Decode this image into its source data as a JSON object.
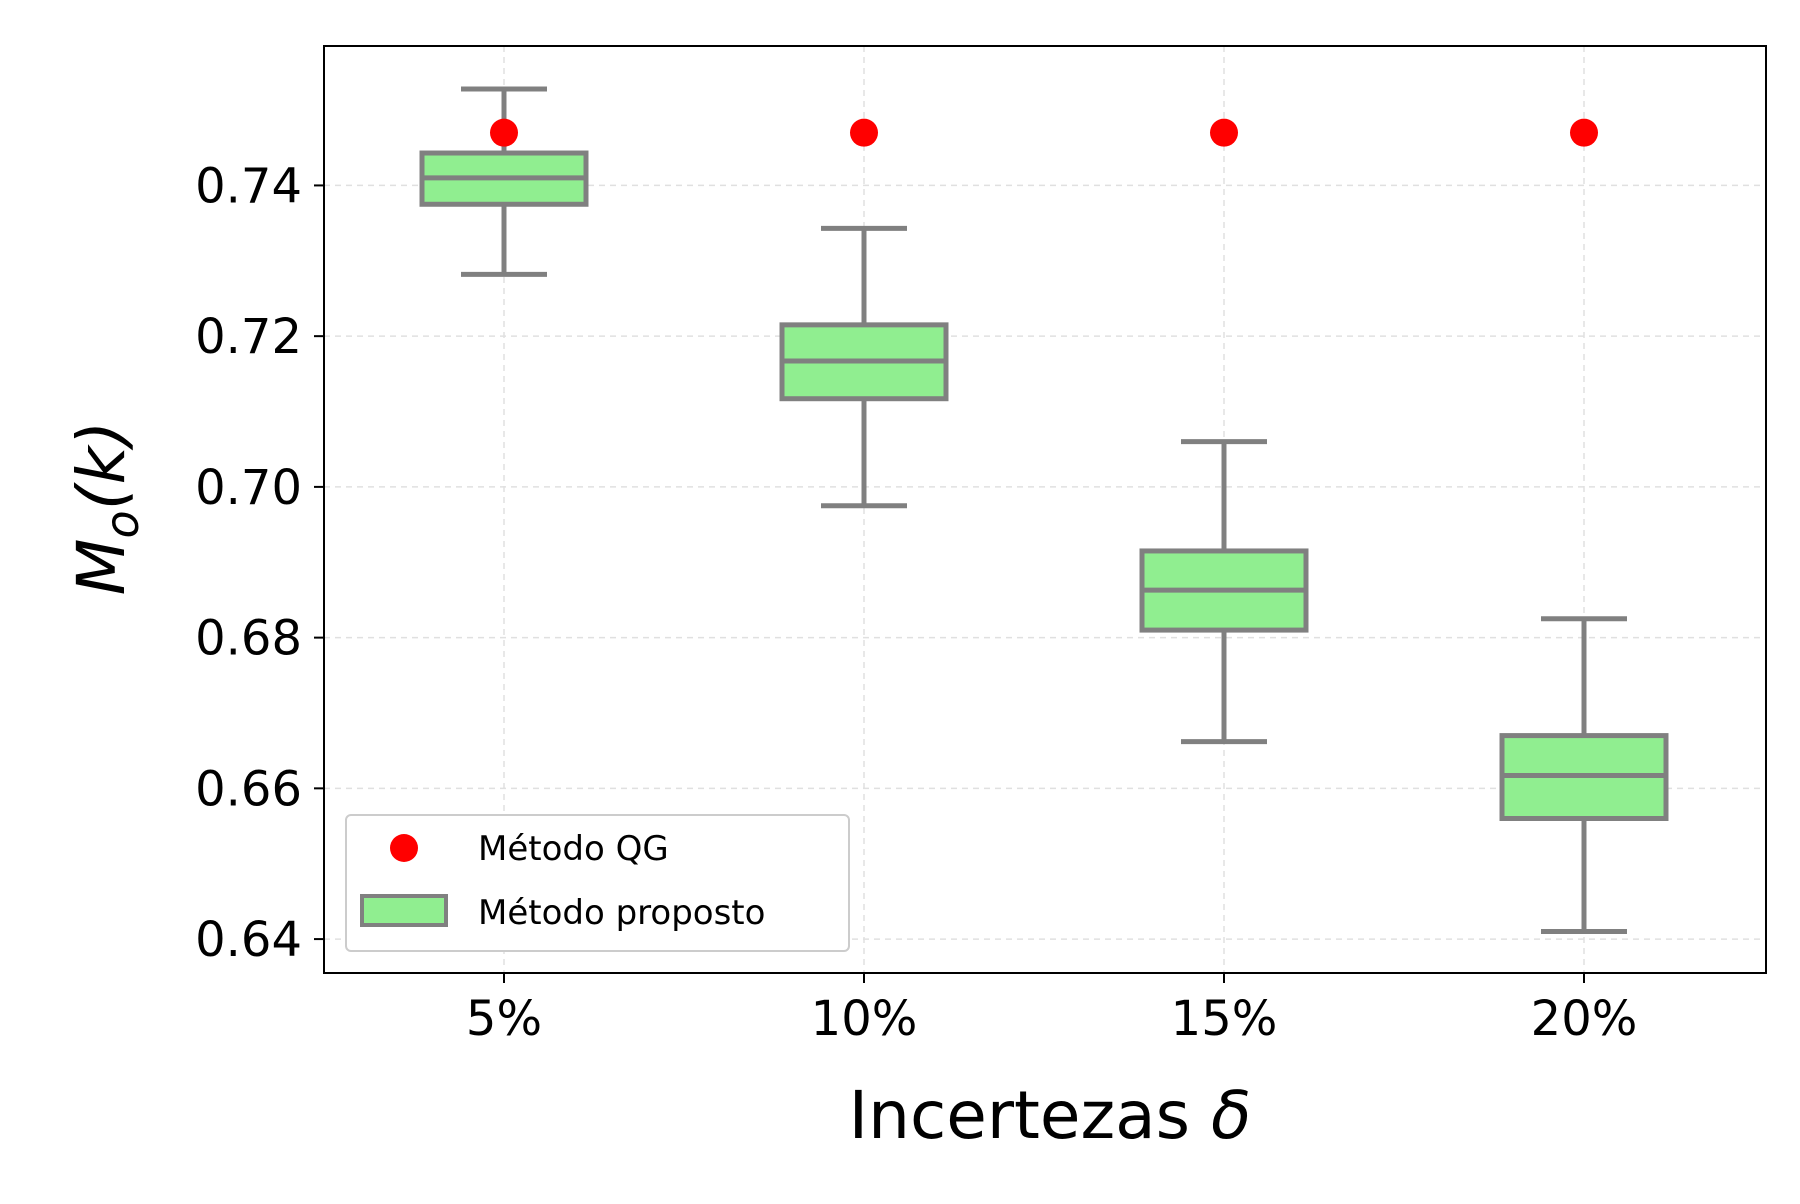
{
  "chart_data": {
    "type": "box",
    "categories": [
      "5%",
      "10%",
      "15%",
      "20%"
    ],
    "xlabel": {
      "text": "Incertezas ",
      "symbol": "δ"
    },
    "ylabel": {
      "base": "M",
      "subscript": "o",
      "arg": "(k)"
    },
    "ylim": [
      0.6355,
      0.7585
    ],
    "yticks": [
      0.64,
      0.66,
      0.68,
      0.7,
      0.72,
      0.74
    ],
    "ytick_labels": [
      "0.64",
      "0.66",
      "0.68",
      "0.70",
      "0.72",
      "0.74"
    ],
    "grid": true,
    "legend_position": "bottom-left",
    "series": [
      {
        "name": "Método QG",
        "kind": "point",
        "color": "#ff0000",
        "values": [
          0.747,
          0.747,
          0.747,
          0.747
        ]
      },
      {
        "name": "Método proposto",
        "kind": "box",
        "fill": "#90ee90",
        "stroke": "#808080",
        "boxes": [
          {
            "whislo": 0.7282,
            "q1": 0.7375,
            "med": 0.741,
            "q3": 0.7443,
            "whishi": 0.7528
          },
          {
            "whislo": 0.6975,
            "q1": 0.7117,
            "med": 0.7167,
            "q3": 0.7215,
            "whishi": 0.7343
          },
          {
            "whislo": 0.6662,
            "q1": 0.681,
            "med": 0.6863,
            "q3": 0.6915,
            "whishi": 0.706
          },
          {
            "whislo": 0.641,
            "q1": 0.656,
            "med": 0.6617,
            "q3": 0.667,
            "whishi": 0.6825
          }
        ]
      }
    ]
  }
}
